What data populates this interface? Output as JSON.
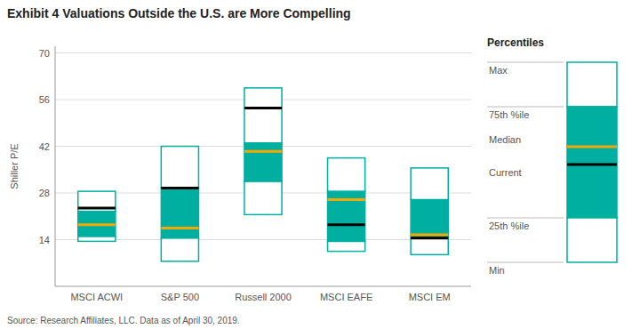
{
  "chart_data": {
    "type": "box",
    "title": "Exhibit 4 Valuations Outside the U.S. are More Compelling",
    "source": "Source: Research Affiliates, LLC. Data as of April 30, 2019.",
    "ylabel": "Shiller P/E",
    "categories": [
      "MSCI ACWI",
      "S&P 500",
      "Russell 2000",
      "MSCI EAFE",
      "MSCI EM"
    ],
    "series": [
      {
        "name": "Max",
        "values": [
          28.5,
          42.0,
          59.5,
          38.5,
          35.5
        ]
      },
      {
        "name": "75th %ile",
        "values": [
          22.5,
          29.5,
          43.0,
          28.5,
          26.0
        ]
      },
      {
        "name": "Median",
        "color": "#F5A800",
        "values": [
          18.5,
          17.5,
          40.5,
          26.0,
          15.5
        ]
      },
      {
        "name": "Current",
        "color": "#000000",
        "values": [
          23.5,
          29.5,
          53.5,
          18.5,
          14.5
        ]
      },
      {
        "name": "25th %ile",
        "values": [
          15.0,
          14.5,
          31.5,
          13.5,
          14.5
        ]
      },
      {
        "name": "Min",
        "values": [
          13.5,
          7.5,
          21.5,
          10.5,
          9.5
        ]
      }
    ],
    "color": "#00AFA0",
    "ylim": [
      0,
      72
    ],
    "yticks": [
      14,
      28,
      42,
      56,
      70
    ],
    "grid": true,
    "legend": "right",
    "legend_title": "Percentiles"
  }
}
